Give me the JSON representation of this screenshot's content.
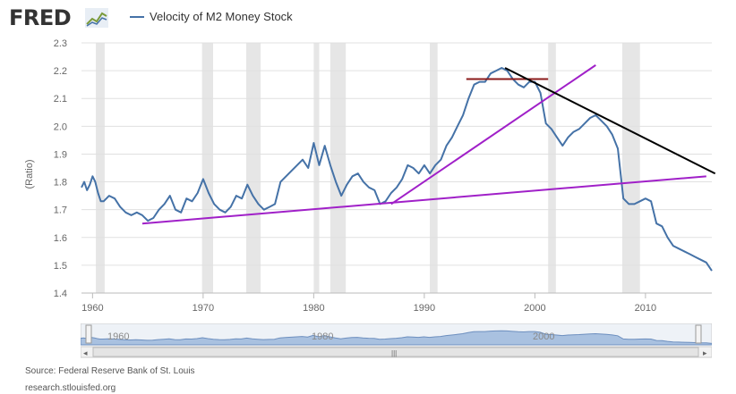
{
  "header": {
    "logo_text": "FRED",
    "logo_icon": "chart-line-icon"
  },
  "chart_data": {
    "type": "line",
    "title": "",
    "xlabel": "",
    "ylabel": "(Ratio)",
    "xlim": [
      1959.0,
      2016.0
    ],
    "ylim": [
      1.4,
      2.3
    ],
    "x_ticks": [
      1960,
      1970,
      1980,
      1990,
      2000,
      2010
    ],
    "y_ticks": [
      1.4,
      1.5,
      1.6,
      1.7,
      1.8,
      1.9,
      2.0,
      2.1,
      2.2,
      2.3
    ],
    "x_tick_labels": [
      "1960",
      "1970",
      "1980",
      "1990",
      "2000",
      "2010"
    ],
    "y_tick_labels": [
      "1.4",
      "1.5",
      "1.6",
      "1.7",
      "1.8",
      "1.9",
      "2.0",
      "2.1",
      "2.2",
      "2.3"
    ],
    "grid": "horizontal",
    "legend_position": "top",
    "series": [
      {
        "name": "Velocity of M2 Money Stock",
        "color": "#4572a7",
        "x": [
          1959.0,
          1959.25,
          1959.5,
          1959.75,
          1960.0,
          1960.25,
          1960.5,
          1960.75,
          1961.0,
          1961.5,
          1962.0,
          1962.5,
          1963.0,
          1963.5,
          1964.0,
          1964.5,
          1965.0,
          1965.5,
          1966.0,
          1966.5,
          1967.0,
          1967.5,
          1968.0,
          1968.5,
          1969.0,
          1969.5,
          1970.0,
          1970.5,
          1971.0,
          1971.5,
          1972.0,
          1972.5,
          1973.0,
          1973.5,
          1974.0,
          1974.5,
          1975.0,
          1975.5,
          1976.0,
          1976.5,
          1977.0,
          1977.5,
          1978.0,
          1978.5,
          1979.0,
          1979.5,
          1980.0,
          1980.5,
          1981.0,
          1981.5,
          1982.0,
          1982.5,
          1983.0,
          1983.5,
          1984.0,
          1984.5,
          1985.0,
          1985.5,
          1986.0,
          1986.5,
          1987.0,
          1987.5,
          1988.0,
          1988.5,
          1989.0,
          1989.5,
          1990.0,
          1990.5,
          1991.0,
          1991.5,
          1992.0,
          1992.5,
          1993.0,
          1993.5,
          1994.0,
          1994.5,
          1995.0,
          1995.5,
          1996.0,
          1996.5,
          1997.0,
          1997.5,
          1998.0,
          1998.5,
          1999.0,
          1999.5,
          2000.0,
          2000.5,
          2001.0,
          2001.5,
          2002.0,
          2002.5,
          2003.0,
          2003.5,
          2004.0,
          2004.5,
          2005.0,
          2005.5,
          2006.0,
          2006.5,
          2007.0,
          2007.5,
          2008.0,
          2008.5,
          2009.0,
          2009.5,
          2010.0,
          2010.5,
          2011.0,
          2011.5,
          2012.0,
          2012.5,
          2013.0,
          2013.5,
          2014.0,
          2014.5,
          2015.0,
          2015.5,
          2016.0
        ],
        "values": [
          1.78,
          1.8,
          1.77,
          1.79,
          1.82,
          1.8,
          1.76,
          1.73,
          1.73,
          1.75,
          1.74,
          1.71,
          1.69,
          1.68,
          1.69,
          1.68,
          1.66,
          1.67,
          1.7,
          1.72,
          1.75,
          1.7,
          1.69,
          1.74,
          1.73,
          1.76,
          1.81,
          1.76,
          1.72,
          1.7,
          1.69,
          1.71,
          1.75,
          1.74,
          1.79,
          1.75,
          1.72,
          1.7,
          1.71,
          1.72,
          1.8,
          1.82,
          1.84,
          1.86,
          1.88,
          1.85,
          1.94,
          1.86,
          1.93,
          1.86,
          1.8,
          1.75,
          1.79,
          1.82,
          1.83,
          1.8,
          1.78,
          1.77,
          1.72,
          1.73,
          1.76,
          1.78,
          1.81,
          1.86,
          1.85,
          1.83,
          1.86,
          1.83,
          1.86,
          1.88,
          1.93,
          1.96,
          2.0,
          2.04,
          2.1,
          2.15,
          2.16,
          2.16,
          2.19,
          2.2,
          2.21,
          2.2,
          2.17,
          2.15,
          2.14,
          2.16,
          2.16,
          2.12,
          2.01,
          1.99,
          1.96,
          1.93,
          1.96,
          1.98,
          1.99,
          2.01,
          2.03,
          2.04,
          2.02,
          2.0,
          1.97,
          1.92,
          1.74,
          1.72,
          1.72,
          1.73,
          1.74,
          1.73,
          1.65,
          1.64,
          1.6,
          1.57,
          1.56,
          1.55,
          1.54,
          1.53,
          1.52,
          1.51,
          1.48
        ]
      }
    ],
    "recessions": [
      [
        1960.3,
        1961.1
      ],
      [
        1969.9,
        1970.9
      ],
      [
        1973.9,
        1975.2
      ],
      [
        1980.0,
        1980.5
      ],
      [
        1981.5,
        1982.9
      ],
      [
        1990.5,
        1991.2
      ],
      [
        2001.2,
        2001.9
      ],
      [
        2007.9,
        2009.5
      ]
    ],
    "trendlines": [
      {
        "color": "#a020c8",
        "from": [
          1964.5,
          1.65
        ],
        "to": [
          2015.5,
          1.82
        ]
      },
      {
        "color": "#a020c8",
        "from": [
          1987.0,
          1.72
        ],
        "to": [
          2005.5,
          2.22
        ]
      },
      {
        "color": "#8b1a1a",
        "from": [
          1993.8,
          2.17
        ],
        "to": [
          2001.2,
          2.17
        ]
      },
      {
        "color": "#000000",
        "from": [
          1997.3,
          2.21
        ],
        "to": [
          2016.3,
          1.83
        ]
      }
    ]
  },
  "navigator": {
    "labels": [
      "1960",
      "1980",
      "2000"
    ],
    "handle_glyph": "|||"
  },
  "footer": {
    "source": "Source: Federal Reserve Bank of St. Louis",
    "site": "research.stlouisfed.org"
  }
}
